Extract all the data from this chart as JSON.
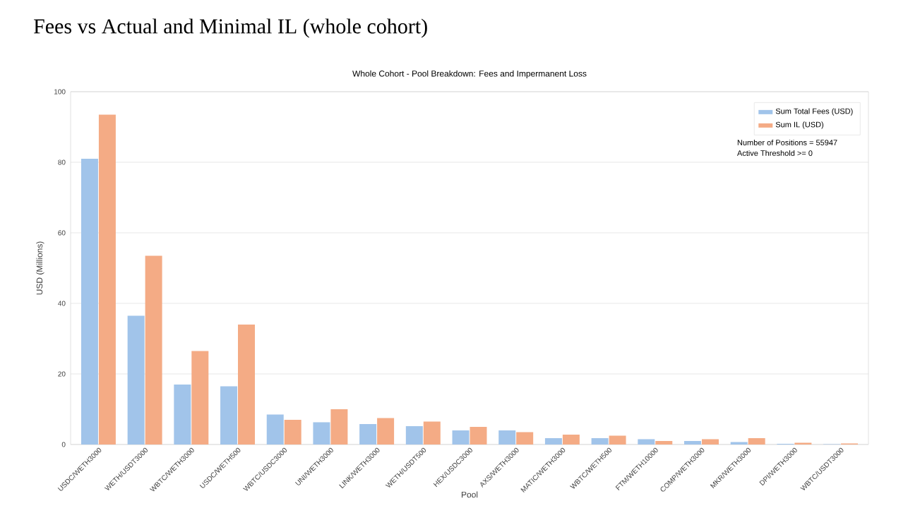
{
  "chart_data": {
    "type": "bar",
    "title": "Fees vs Actual and Minimal IL (whole cohort)",
    "subtitle": "Whole Cohort - Pool Breakdown: Fees and Impermanent Loss",
    "xlabel": "Pool",
    "ylabel": "USD (Millions)",
    "categories": [
      "USDC/WETH3000",
      "WETH/USDT3000",
      "WBTC/WETH3000",
      "USDC/WETH500",
      "WBTC/USDC3000",
      "UNI/WETH3000",
      "LINK/WETH3000",
      "WETH/USDT500",
      "HEX/USDC3000",
      "AXS/WETH3000",
      "MATIC/WETH3000",
      "WBTC/WETH500",
      "FTM/WETH10000",
      "COMP/WETH3000",
      "MKR/WETH3000",
      "DPI/WETH3000",
      "WBTC/USDT3000"
    ],
    "series": [
      {
        "name": "Sum Total Fees (USD)",
        "color": "#a1c4ea",
        "values": [
          81,
          36.5,
          17,
          16.5,
          8.5,
          6.3,
          5.8,
          5.2,
          4,
          4,
          1.8,
          1.8,
          1.5,
          1,
          0.7,
          0.2,
          0.1
        ]
      },
      {
        "name": "Sum IL (USD)",
        "color": "#f4ab85",
        "values": [
          93.5,
          53.5,
          26.5,
          34,
          7,
          10,
          7.5,
          6.5,
          5,
          3.5,
          2.8,
          2.5,
          1,
          1.5,
          1.8,
          0.5,
          0.3
        ]
      }
    ],
    "ylim": [
      0,
      100
    ],
    "yticks": [
      0,
      20,
      40,
      60,
      80,
      100
    ],
    "grid": "y",
    "legend": "top right",
    "annotations": [
      "Number of Positions = 55947",
      "Active Threshold >= 0"
    ]
  }
}
